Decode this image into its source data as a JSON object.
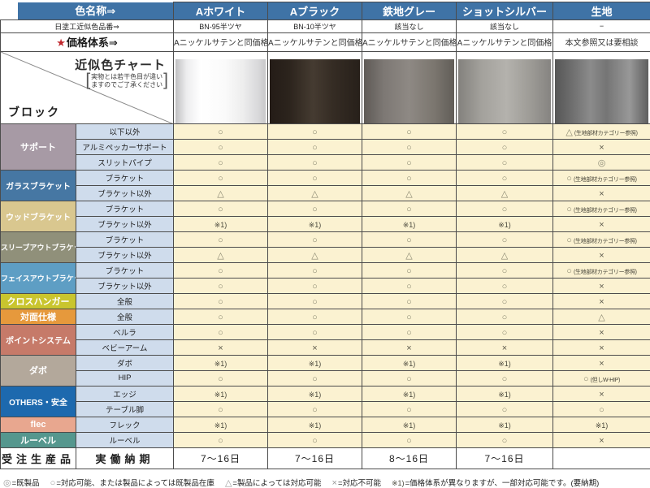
{
  "colors": {
    "header_blue": "#3f73a6",
    "data_cell_bg": "#fbf2d1",
    "item_cell_bg": "#cfdcec"
  },
  "header": {
    "color_name_label": "色名称⇒",
    "code_row_label": "日塗工近似色品番⇒",
    "price_row_star": "★",
    "price_row_label": "価格体系⇒",
    "chart": {
      "title": "近似色チャート",
      "note_line1": "実物とは若干色目が違い",
      "note_line2": "ますのでご了承ください",
      "bracket_open": "[",
      "bracket_close": "]",
      "block_label": "ブロック"
    },
    "columns": [
      {
        "name": "Aホワイト",
        "code": "BN-95半ツヤ",
        "price": "Aニッケルサテンと同価格",
        "swatch": "white"
      },
      {
        "name": "Aブラック",
        "code": "BN-10半ツヤ",
        "price": "Aニッケルサテンと同価格",
        "swatch": "black"
      },
      {
        "name": "鉄地グレー",
        "code": "該当なし",
        "price": "Aニッケルサテンと同価格",
        "swatch": "iron_gray"
      },
      {
        "name": "ショットシルバー",
        "code": "該当なし",
        "price": "Aニッケルサテンと同価格",
        "swatch": "shot_silver"
      },
      {
        "name": "生地",
        "code": "−",
        "price": "本文参照又は要相談",
        "swatch": "raw"
      }
    ]
  },
  "swatches": {
    "white": [
      "#bfbfc1",
      "#ededee 12%",
      "#ffffff 28%",
      "#fafafa 55%",
      "#ededed 75%",
      "#d8d8da 92%",
      "#c8c8ca"
    ],
    "black": [
      "#241c17",
      "#2c241d 22%",
      "#453b31 48%",
      "#352c24 70%",
      "#27201a"
    ],
    "iron_gray": [
      "#5e5a56",
      "#7d7874 22%",
      "#8e8984 50%",
      "#7b766f 78%",
      "#615d58"
    ],
    "shot_silver": [
      "#83817d",
      "#a3a19c 25%",
      "#b4b2ad 52%",
      "#9d9b96 78%",
      "#868481"
    ],
    "raw": [
      "#565656",
      "#6e6e6e 18%",
      "#8b8b8b 38%",
      "#757575 55%",
      "#989898 80%",
      "#5e5e5e"
    ]
  },
  "table": {
    "groups": [
      {
        "label": "サポート",
        "color": "#a79aa5",
        "items": [
          {
            "name": "以下以外",
            "values": [
              "○",
              "○",
              "○",
              "○",
              "△"
            ],
            "note": "(生地部材カテゴリー参照)"
          },
          {
            "name": "アルミペッカーサポート",
            "values": [
              "○",
              "○",
              "○",
              "○",
              "×"
            ]
          },
          {
            "name": "スリットパイプ",
            "values": [
              "○",
              "○",
              "○",
              "○",
              "◎"
            ]
          }
        ]
      },
      {
        "label": "ガラスブラケット",
        "color": "#4677a3",
        "items": [
          {
            "name": "ブラケット",
            "values": [
              "○",
              "○",
              "○",
              "○",
              "○"
            ],
            "note": "(生地部材カテゴリー参照)"
          },
          {
            "name": "ブラケット以外",
            "values": [
              "△",
              "△",
              "△",
              "△",
              "×"
            ]
          }
        ]
      },
      {
        "label": "ウッドブラケット",
        "color": "#d9c78f",
        "items": [
          {
            "name": "ブラケット",
            "values": [
              "○",
              "○",
              "○",
              "○",
              "○"
            ],
            "note": "(生地部材カテゴリー参照)"
          },
          {
            "name": "ブラケット以外",
            "values": [
              "※1)",
              "※1)",
              "※1)",
              "※1)",
              "×"
            ]
          }
        ]
      },
      {
        "label": "スリーブアウトブラケット",
        "color": "#90907a",
        "items": [
          {
            "name": "ブラケット",
            "values": [
              "○",
              "○",
              "○",
              "○",
              "○"
            ],
            "note": "(生地部材カテゴリー参照)"
          },
          {
            "name": "ブラケット以外",
            "values": [
              "△",
              "△",
              "△",
              "△",
              "×"
            ]
          }
        ]
      },
      {
        "label": "フェイスアウトブラケット",
        "color": "#5e9ec4",
        "items": [
          {
            "name": "ブラケット",
            "values": [
              "○",
              "○",
              "○",
              "○",
              "○"
            ],
            "note": "(生地部材カテゴリー参照)"
          },
          {
            "name": "ブラケット以外",
            "values": [
              "○",
              "○",
              "○",
              "○",
              "×"
            ]
          }
        ]
      },
      {
        "label": "クロスハンガー",
        "color": "#c9c52e",
        "items": [
          {
            "name": "全般",
            "values": [
              "○",
              "○",
              "○",
              "○",
              "×"
            ]
          }
        ]
      },
      {
        "label": "対面仕様",
        "color": "#e6993c",
        "items": [
          {
            "name": "全般",
            "values": [
              "○",
              "○",
              "○",
              "○",
              "△"
            ]
          }
        ]
      },
      {
        "label": "ポイントシステム",
        "color": "#c67a69",
        "items": [
          {
            "name": "ベルラ",
            "values": [
              "○",
              "○",
              "○",
              "○",
              "×"
            ]
          },
          {
            "name": "ベビーアーム",
            "values": [
              "×",
              "×",
              "×",
              "×",
              "×"
            ]
          }
        ]
      },
      {
        "label": "ダボ",
        "color": "#b3a89b",
        "items": [
          {
            "name": "ダボ",
            "values": [
              "※1)",
              "※1)",
              "※1)",
              "※1)",
              "×"
            ]
          },
          {
            "name": "HIP",
            "values": [
              "○",
              "○",
              "○",
              "○",
              "○"
            ],
            "note": "(但しW-HIP)"
          }
        ]
      },
      {
        "label": "OTHERS・安全",
        "color": "#1d69ae",
        "items": [
          {
            "name": "エッジ",
            "values": [
              "※1)",
              "※1)",
              "※1)",
              "※1)",
              "×"
            ]
          },
          {
            "name": "テーブル脚",
            "values": [
              "○",
              "○",
              "○",
              "○",
              "○"
            ]
          }
        ]
      },
      {
        "label": "flec",
        "color": "#e8a78f",
        "items": [
          {
            "name": "フレック",
            "values": [
              "※1)",
              "※1)",
              "※1)",
              "※1)",
              "※1)"
            ]
          }
        ]
      },
      {
        "label": "ルーベル",
        "color": "#55978e",
        "items": [
          {
            "name": "ルーベル",
            "values": [
              "○",
              "○",
              "○",
              "○",
              "×"
            ]
          }
        ]
      }
    ],
    "delivery": {
      "category": "受注生産品",
      "item": "実働納期",
      "values": [
        "7〜16日",
        "7〜16日",
        "8〜16日",
        "7〜16日",
        ""
      ]
    }
  },
  "legend": [
    {
      "symbol": "◎",
      "text": "=既製品"
    },
    {
      "symbol": "○",
      "text": "=対応可能、または製品によっては既製品在庫"
    },
    {
      "symbol": "△",
      "text": "=製品によっては対応可能"
    },
    {
      "symbol": "×",
      "text": "=対応不可能"
    },
    {
      "symbol": "※1)",
      "text": "=価格体系が異なりますが、一部対応可能です。(要納期)"
    }
  ]
}
